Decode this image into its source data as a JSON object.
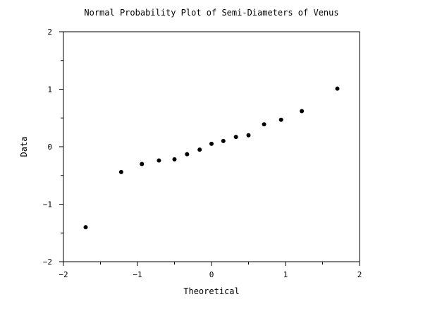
{
  "chart_data": {
    "type": "scatter",
    "title": "Normal Probability Plot of Semi-Diameters of Venus",
    "xlabel": "Theoretical",
    "ylabel": "Data",
    "xlim": [
      -2,
      2
    ],
    "ylim": [
      -2,
      2
    ],
    "x_major_ticks": [
      -2,
      -1,
      0,
      1,
      2
    ],
    "x_tick_labels": [
      "−2",
      "−1",
      "0",
      "1",
      "2"
    ],
    "x_minor_ticks": [
      -1.5,
      -0.5,
      0.5,
      1.5
    ],
    "y_major_ticks": [
      -2,
      -1,
      0,
      1,
      2
    ],
    "y_tick_labels": [
      "−2",
      "−1",
      "0",
      "1",
      "2"
    ],
    "y_minor_ticks": [
      -1.5,
      -0.5,
      0.5,
      1.5
    ],
    "grid": false,
    "legend": "none",
    "point_color": "#000000",
    "points": [
      {
        "x": -1.7,
        "y": -1.4
      },
      {
        "x": -1.22,
        "y": -0.44
      },
      {
        "x": -0.94,
        "y": -0.3
      },
      {
        "x": -0.71,
        "y": -0.24
      },
      {
        "x": -0.5,
        "y": -0.22
      },
      {
        "x": -0.33,
        "y": -0.13
      },
      {
        "x": -0.16,
        "y": -0.05
      },
      {
        "x": 0.0,
        "y": 0.05
      },
      {
        "x": 0.16,
        "y": 0.1
      },
      {
        "x": 0.33,
        "y": 0.17
      },
      {
        "x": 0.5,
        "y": 0.2
      },
      {
        "x": 0.71,
        "y": 0.39
      },
      {
        "x": 0.94,
        "y": 0.47
      },
      {
        "x": 1.22,
        "y": 0.62
      },
      {
        "x": 1.7,
        "y": 1.01
      }
    ]
  }
}
